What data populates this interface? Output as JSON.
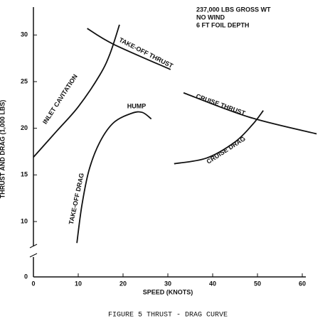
{
  "chart_data": {
    "type": "line",
    "caption": "FIGURE 5  THRUST - DRAG CURVE",
    "notes": [
      "237,000 LBS GROSS WT",
      "NO WIND",
      "6 FT FOIL DEPTH"
    ],
    "x_label": "SPEED (KNOTS)",
    "y_label": "THRUST AND DRAG (1,000 LBS)",
    "xlim": [
      0,
      60
    ],
    "xticks": [
      0,
      10,
      20,
      30,
      40,
      50,
      60
    ],
    "ylim": [
      0,
      32
    ],
    "yticks": [
      0,
      10,
      15,
      20,
      25,
      30
    ],
    "y_axis_break": 6.5,
    "series": [
      {
        "name": "INLET CAVITATION",
        "color": "#111",
        "x": [
          0,
          5.2,
          10,
          14.8,
          17.1,
          19.2
        ],
        "values": [
          16.9,
          19.7,
          22.3,
          25.7,
          28,
          31.1
        ]
      },
      {
        "name": "TAKE-OFF THRUST",
        "color": "#111",
        "x": [
          12,
          17.9,
          30.6
        ],
        "values": [
          30.7,
          29,
          26.3
        ]
      },
      {
        "name": "TAKE-OFF DRAG",
        "color": "#111",
        "x": [
          9.7,
          10.8,
          12.4,
          14.8,
          17.9,
          21.9,
          24.3,
          26.3
        ],
        "values": [
          7.7,
          11.7,
          15.5,
          18.5,
          20.6,
          21.6,
          21.7,
          21
        ]
      },
      {
        "name": "CRUISE THRUST",
        "color": "#111",
        "x": [
          33.5,
          48.1,
          63.2
        ],
        "values": [
          23.8,
          21.2,
          19.4
        ]
      },
      {
        "name": "CRUISE DRAG",
        "color": "#111",
        "x": [
          31.4,
          38.6,
          44.9,
          48.9,
          51.3
        ],
        "values": [
          16.2,
          16.8,
          18.5,
          20.4,
          21.9
        ]
      }
    ],
    "hump_label": "HUMP"
  }
}
